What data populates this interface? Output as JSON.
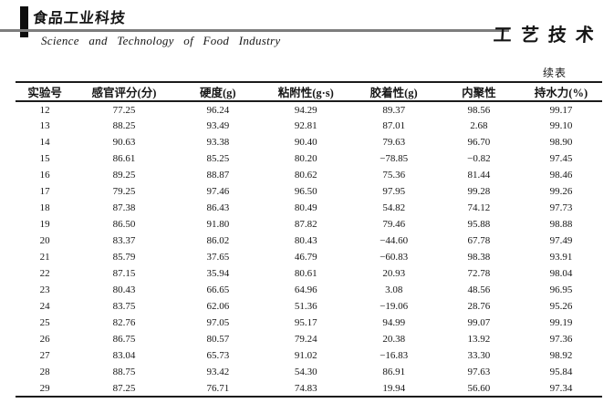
{
  "masthead": {
    "journal_title_cn": "食品工业科技",
    "journal_title_en": "Science and Technology of Food Industry",
    "section_label": "工艺技术"
  },
  "table": {
    "continued_label": "续表",
    "columns": [
      "实验号",
      "感官评分(分)",
      "硬度(g)",
      "粘附性(g·s)",
      "胶着性(g)",
      "内聚性",
      "持水力(%)"
    ],
    "rows": [
      [
        "12",
        "77.25",
        "96.24",
        "94.29",
        "89.37",
        "98.56",
        "99.17"
      ],
      [
        "13",
        "88.25",
        "93.49",
        "92.81",
        "87.01",
        "2.68",
        "99.10"
      ],
      [
        "14",
        "90.63",
        "93.38",
        "90.40",
        "79.63",
        "96.70",
        "98.90"
      ],
      [
        "15",
        "86.61",
        "85.25",
        "80.20",
        "−78.85",
        "−0.82",
        "97.45"
      ],
      [
        "16",
        "89.25",
        "88.87",
        "80.62",
        "75.36",
        "81.44",
        "98.46"
      ],
      [
        "17",
        "79.25",
        "97.46",
        "96.50",
        "97.95",
        "99.28",
        "99.26"
      ],
      [
        "18",
        "87.38",
        "86.43",
        "80.49",
        "54.82",
        "74.12",
        "97.73"
      ],
      [
        "19",
        "86.50",
        "91.80",
        "87.82",
        "79.46",
        "95.88",
        "98.88"
      ],
      [
        "20",
        "83.37",
        "86.02",
        "80.43",
        "−44.60",
        "67.78",
        "97.49"
      ],
      [
        "21",
        "85.79",
        "37.65",
        "46.79",
        "−60.83",
        "98.38",
        "93.91"
      ],
      [
        "22",
        "87.15",
        "35.94",
        "80.61",
        "20.93",
        "72.78",
        "98.04"
      ],
      [
        "23",
        "80.43",
        "66.65",
        "64.96",
        "3.08",
        "48.56",
        "96.95"
      ],
      [
        "24",
        "83.75",
        "62.06",
        "51.36",
        "−19.06",
        "28.76",
        "95.26"
      ],
      [
        "25",
        "82.76",
        "97.05",
        "95.17",
        "94.99",
        "99.07",
        "99.19"
      ],
      [
        "26",
        "86.75",
        "80.57",
        "79.24",
        "20.38",
        "13.92",
        "97.36"
      ],
      [
        "27",
        "83.04",
        "65.73",
        "91.02",
        "−16.83",
        "33.30",
        "98.92"
      ],
      [
        "28",
        "88.75",
        "93.42",
        "54.30",
        "86.91",
        "97.63",
        "95.84"
      ],
      [
        "29",
        "87.25",
        "76.71",
        "74.83",
        "19.94",
        "56.60",
        "97.34"
      ]
    ]
  },
  "colors": {
    "text": "#161616",
    "rule_gray": "#7d7d7d",
    "table_border": "#1c1c1c",
    "background": "#ffffff"
  }
}
